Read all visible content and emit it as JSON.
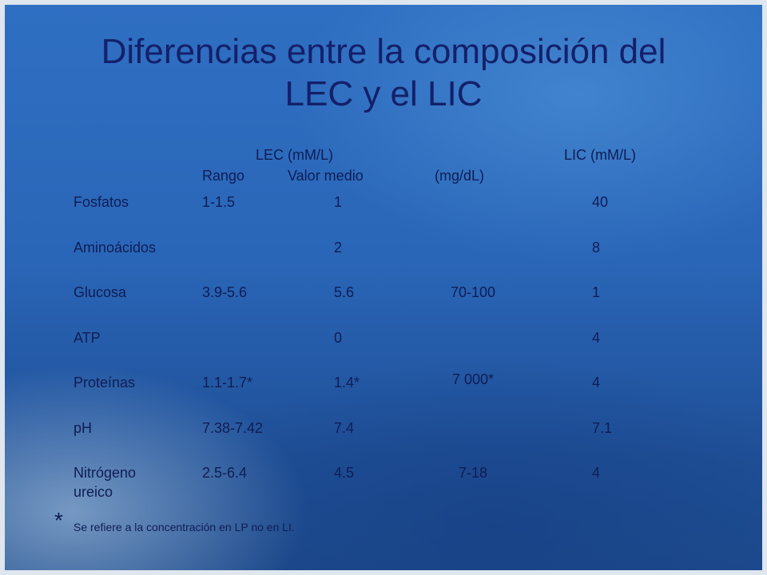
{
  "title": [
    "Diferencias entre la composición del",
    "LEC y el LIC"
  ],
  "header": {
    "lec": "LEC (mM/L)",
    "lic": "LIC (mM/L)",
    "rango": "Rango",
    "valor_medio": "Valor medio",
    "mg_dl": "(mg/dL)"
  },
  "table": {
    "rows": [
      [
        "Fosfatos",
        "1-1.5",
        "1",
        null,
        "40"
      ],
      [
        "Aminoácidos",
        null,
        "2",
        null,
        "8"
      ],
      [
        "Glucosa",
        "3.9-5.6",
        "5.6",
        "70-100",
        "1"
      ],
      [
        "ATP",
        null,
        "0",
        null,
        "4"
      ],
      [
        "Proteínas",
        "1.1-1.7*",
        "1.4*",
        "7 000*",
        "4"
      ],
      [
        "pH",
        "7.38-7.42",
        "7.4",
        null,
        "7.1"
      ],
      [
        "Nitrógeno ureico",
        "2.5-6.4",
        "4.5",
        "7-18",
        "4"
      ]
    ]
  },
  "footnote": {
    "marker": "*",
    "text": "Se refiere a la concentración en LP no en LI."
  }
}
